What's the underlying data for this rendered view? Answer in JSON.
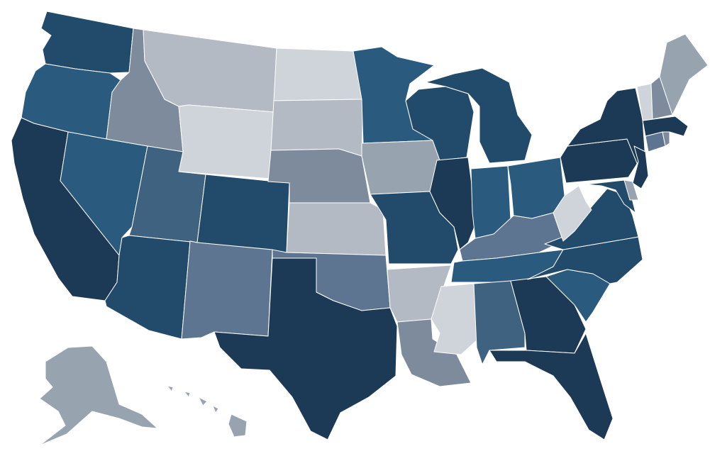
{
  "palette": {
    "c1": "#cfd4db",
    "c2": "#b3bac3",
    "c3": "#98a3b0",
    "c4": "#7d8b9c",
    "c5": "#5d7590",
    "c6": "#3f6280",
    "c7": "#2a5a7e",
    "c8": "#224a6b",
    "c9": "#1c3a56"
  },
  "states": [
    {
      "code": "WA",
      "level": 8
    },
    {
      "code": "OR",
      "level": 7
    },
    {
      "code": "CA",
      "level": 9
    },
    {
      "code": "NV",
      "level": 7
    },
    {
      "code": "ID",
      "level": 4
    },
    {
      "code": "MT",
      "level": 2
    },
    {
      "code": "WY",
      "level": 1
    },
    {
      "code": "UT",
      "level": 6
    },
    {
      "code": "AZ",
      "level": 8
    },
    {
      "code": "CO",
      "level": 8
    },
    {
      "code": "NM",
      "level": 5
    },
    {
      "code": "ND",
      "level": 1
    },
    {
      "code": "SD",
      "level": 2
    },
    {
      "code": "NE",
      "level": 4
    },
    {
      "code": "KS",
      "level": 2
    },
    {
      "code": "OK",
      "level": 5
    },
    {
      "code": "TX",
      "level": 9
    },
    {
      "code": "MN",
      "level": 7
    },
    {
      "code": "IA",
      "level": 3
    },
    {
      "code": "MO",
      "level": 8
    },
    {
      "code": "AR",
      "level": 2
    },
    {
      "code": "LA",
      "level": 4
    },
    {
      "code": "WI",
      "level": 8
    },
    {
      "code": "IL",
      "level": 9
    },
    {
      "code": "MI",
      "level": 8
    },
    {
      "code": "IN",
      "level": 7
    },
    {
      "code": "OH",
      "level": 7
    },
    {
      "code": "KY",
      "level": 5
    },
    {
      "code": "TN",
      "level": 7
    },
    {
      "code": "MS",
      "level": 1
    },
    {
      "code": "AL",
      "level": 6
    },
    {
      "code": "GA",
      "level": 9
    },
    {
      "code": "FL",
      "level": 9
    },
    {
      "code": "SC",
      "level": 7
    },
    {
      "code": "NC",
      "level": 8
    },
    {
      "code": "VA",
      "level": 8
    },
    {
      "code": "WV",
      "level": 1
    },
    {
      "code": "PA",
      "level": 9
    },
    {
      "code": "NY",
      "level": 9
    },
    {
      "code": "MD",
      "level": 8
    },
    {
      "code": "DE",
      "level": 3
    },
    {
      "code": "NJ",
      "level": 9
    },
    {
      "code": "CT",
      "level": 5
    },
    {
      "code": "RI",
      "level": 4
    },
    {
      "code": "MA",
      "level": 9
    },
    {
      "code": "VT",
      "level": 1
    },
    {
      "code": "NH",
      "level": 4
    },
    {
      "code": "ME",
      "level": 3
    },
    {
      "code": "AK",
      "level": 3
    },
    {
      "code": "HI",
      "level": 3
    }
  ]
}
